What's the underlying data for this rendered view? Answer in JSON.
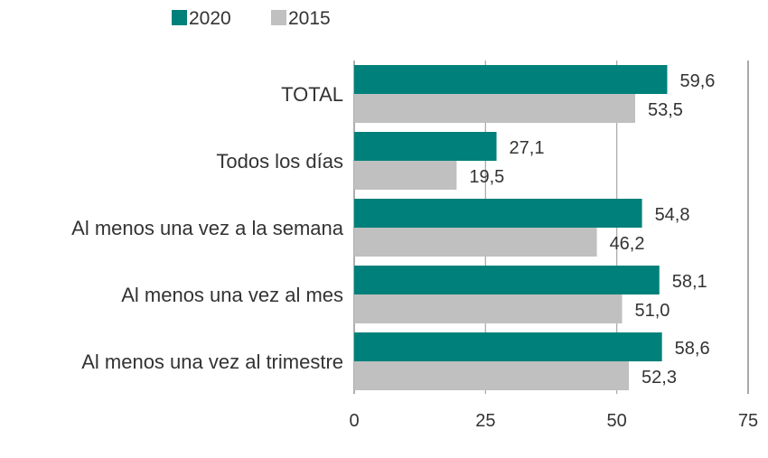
{
  "chart_data": {
    "type": "bar",
    "orientation": "horizontal",
    "categories": [
      "TOTAL",
      "Todos los días",
      "Al menos una vez a la semana",
      "Al menos una vez al mes",
      "Al menos una vez al trimestre"
    ],
    "series": [
      {
        "name": "2020",
        "color": "#00807a",
        "values": [
          59.6,
          27.1,
          54.8,
          58.1,
          58.6
        ],
        "labels": [
          "59,6",
          "27,1",
          "54,8",
          "58,1",
          "58,6"
        ]
      },
      {
        "name": "2015",
        "color": "#c0c0c0",
        "values": [
          53.5,
          19.5,
          46.2,
          51.0,
          52.3
        ],
        "labels": [
          "53,5",
          "19,5",
          "46,2",
          "51,0",
          "52,3"
        ]
      }
    ],
    "xlim": [
      0,
      75
    ],
    "xticks": [
      "0",
      "25",
      "50",
      "75"
    ],
    "grid": true,
    "legend": "top-left"
  }
}
